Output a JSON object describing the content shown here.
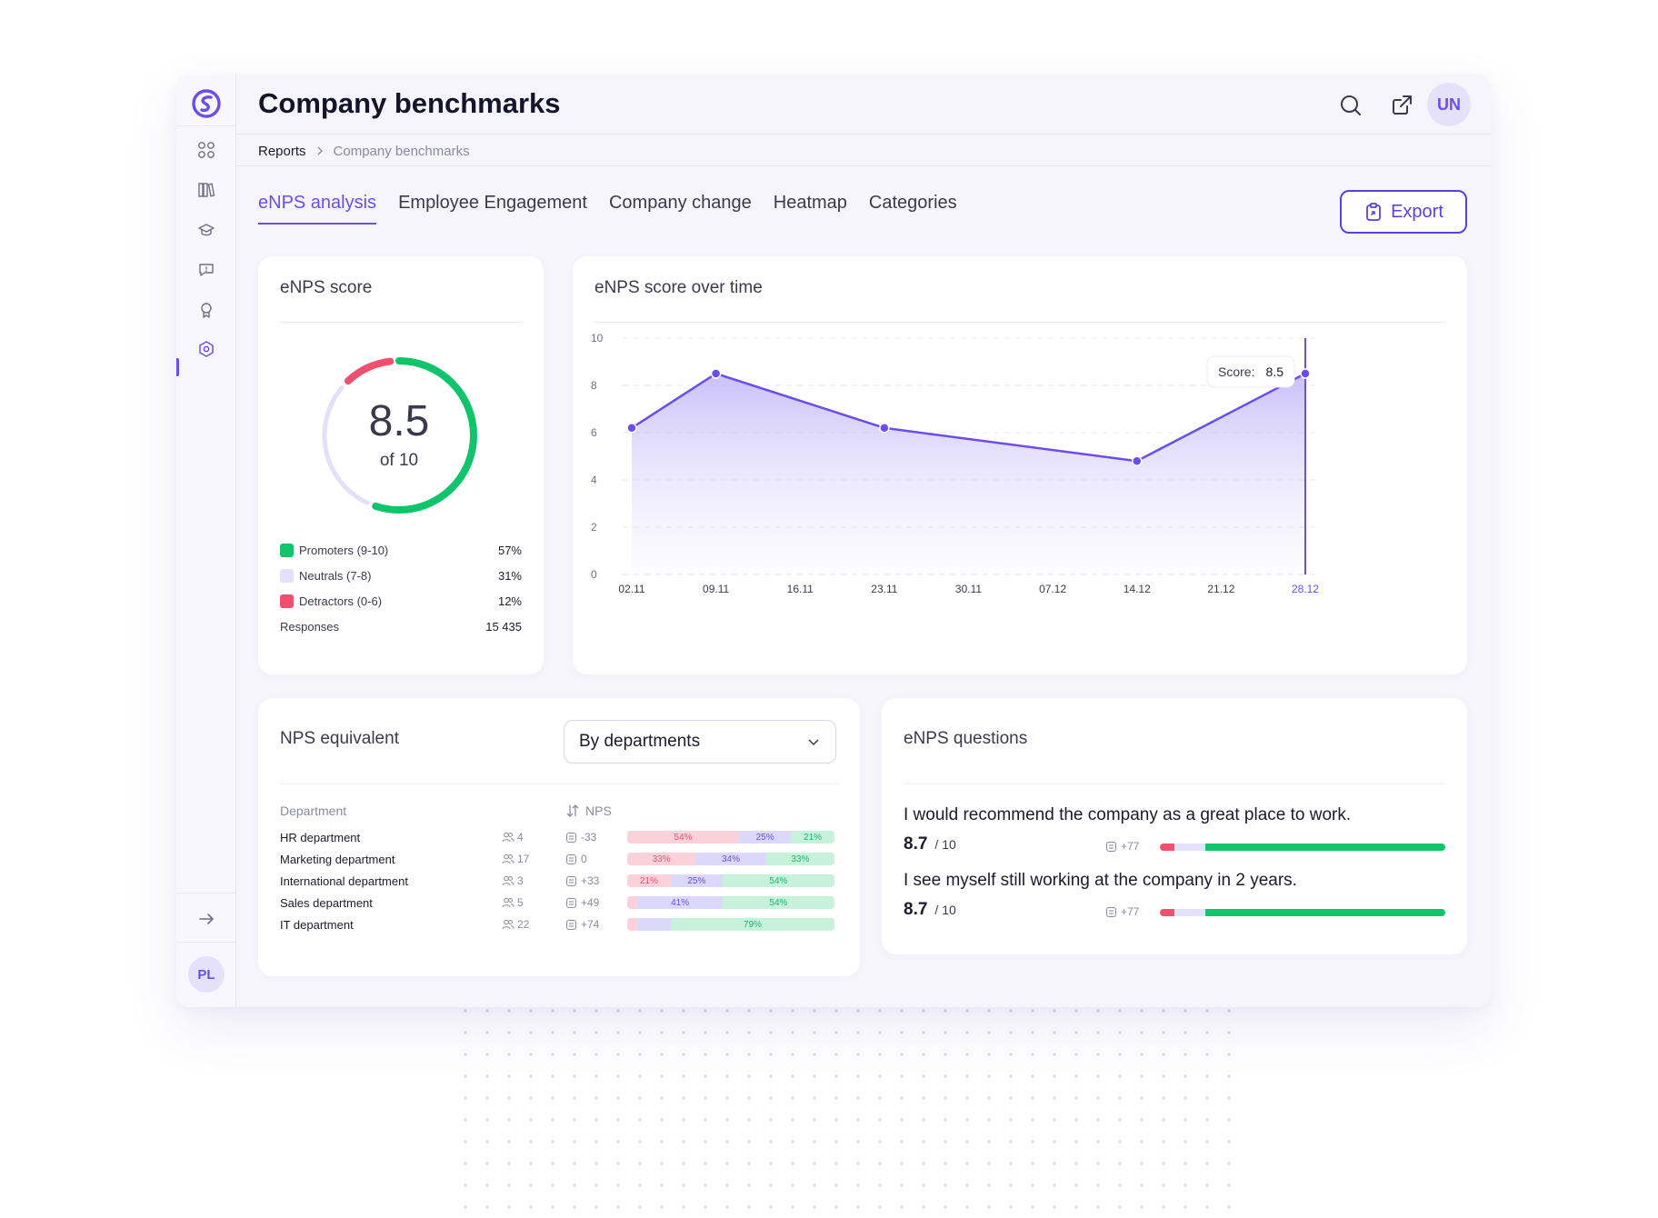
{
  "app": {
    "title": "Company benchmarks",
    "user_initials": "UN",
    "sidebar_user_initials": "PL"
  },
  "breadcrumb": {
    "root": "Reports",
    "current": "Company benchmarks"
  },
  "tabs": [
    {
      "label": "eNPS analysis",
      "active": true
    },
    {
      "label": "Employee Engagement",
      "active": false
    },
    {
      "label": "Company change",
      "active": false
    },
    {
      "label": "Heatmap",
      "active": false
    },
    {
      "label": "Categories",
      "active": false
    }
  ],
  "export_label": "Export",
  "sidebar_icons": [
    "dashboard-icon",
    "library-icon",
    "graduation-cap-icon",
    "feedback-icon",
    "award-icon",
    "settings-hexagon-icon"
  ],
  "colors": {
    "accent": "#6b4eea",
    "promoters": "#10c46b",
    "neutrals": "#e3e0fb",
    "detractors": "#f0506e"
  },
  "enps_score": {
    "title": "eNPS score",
    "value": "8.5",
    "of_label": "of 10",
    "legend": [
      {
        "label": "Promoters (9-10)",
        "pct": "57%",
        "fraction": 0.57
      },
      {
        "label": "Neutrals (7-8)",
        "pct": "31%",
        "fraction": 0.31
      },
      {
        "label": "Detractors (0-6)",
        "pct": "12%",
        "fraction": 0.12
      }
    ],
    "responses_label": "Responses",
    "responses_value": "15 435"
  },
  "chart_data": {
    "type": "area",
    "title": "eNPS score over time",
    "categories": [
      "02.11",
      "09.11",
      "16.11",
      "23.11",
      "30.11",
      "07.12",
      "14.12",
      "21.12",
      "28.12"
    ],
    "points": [
      {
        "x": "02.11",
        "y": 6.2
      },
      {
        "x": "09.11",
        "y": 8.5
      },
      {
        "x": "23.11",
        "y": 6.2
      },
      {
        "x": "14.12",
        "y": 4.8
      },
      {
        "x": "28.12",
        "y": 8.5
      }
    ],
    "yticks": [
      0,
      2,
      4,
      6,
      8,
      10
    ],
    "ylim": [
      0,
      10
    ],
    "grid": true,
    "tooltip": {
      "label": "Score:",
      "value": "8.5"
    },
    "highlighted": "28.12"
  },
  "nps_equivalent": {
    "title": "NPS equivalent",
    "dropdown_value": "By departments",
    "col_department": "Department",
    "col_nps": "NPS",
    "rows": [
      {
        "name": "HR department",
        "count": "4",
        "nps": "-33",
        "r": 54,
        "n": 25,
        "g": 21,
        "r_label": "54%",
        "n_label": "25%",
        "g_label": "21%"
      },
      {
        "name": "Marketing department",
        "count": "17",
        "nps": "0",
        "r": 33,
        "n": 34,
        "g": 33,
        "r_label": "33%",
        "n_label": "34%",
        "g_label": "33%"
      },
      {
        "name": "International department",
        "count": "3",
        "nps": "+33",
        "r": 21,
        "n": 25,
        "g": 54,
        "r_label": "21%",
        "n_label": "25%",
        "g_label": "54%"
      },
      {
        "name": "Sales department",
        "count": "5",
        "nps": "+49",
        "r": 5,
        "n": 41,
        "g": 54,
        "r_label": "",
        "n_label": "41%",
        "g_label": "54%"
      },
      {
        "name": "IT department",
        "count": "22",
        "nps": "+74",
        "r": 5,
        "n": 16,
        "g": 79,
        "r_label": "",
        "n_label": "",
        "g_label": "79%"
      }
    ]
  },
  "enps_questions": {
    "title": "eNPS questions",
    "items": [
      {
        "text": "I would recommend the company as a great place to work.",
        "score": "8.7",
        "of": "/ 10",
        "responses": "+77",
        "r": 5,
        "n": 11,
        "g": 84
      },
      {
        "text": "I see myself still working at the company in 2 years.",
        "score": "8.7",
        "of": "/ 10",
        "responses": "+77",
        "r": 5,
        "n": 11,
        "g": 84
      }
    ]
  }
}
